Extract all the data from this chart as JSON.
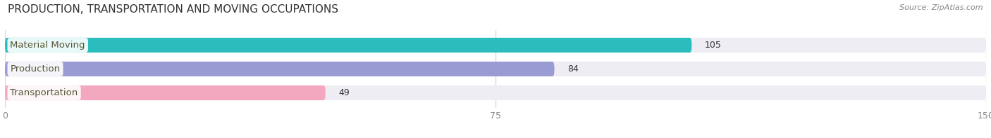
{
  "title": "PRODUCTION, TRANSPORTATION AND MOVING OCCUPATIONS",
  "source_text": "Source: ZipAtlas.com",
  "categories": [
    "Material Moving",
    "Production",
    "Transportation"
  ],
  "values": [
    105,
    84,
    49
  ],
  "bar_colors": [
    "#2bbdbe",
    "#9b9bd4",
    "#f4a8c0"
  ],
  "bar_bg_color": "#ededf3",
  "xlim": [
    0,
    150
  ],
  "xticks": [
    0,
    75,
    150
  ],
  "title_fontsize": 11,
  "label_fontsize": 9.5,
  "value_fontsize": 9,
  "bar_height": 0.62,
  "background_color": "#ffffff",
  "grid_color": "#d8d8e8",
  "label_text_color": "#555533",
  "value_inside_color": "#ffffff",
  "value_outside_color": "#333333"
}
